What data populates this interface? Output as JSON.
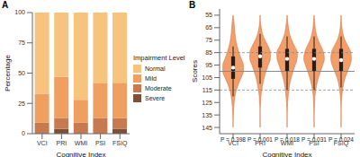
{
  "chart_data": [
    {
      "type": "bar",
      "title": "A",
      "stacked": true,
      "categories": [
        "VCI",
        "PRI",
        "WMI",
        "PSI",
        "FSIQ"
      ],
      "series": [
        {
          "name": "Normal",
          "color": "#F7C47F",
          "values": [
            67,
            53,
            72,
            58,
            58
          ]
        },
        {
          "name": "Mild",
          "color": "#EFA060",
          "values": [
            24,
            34,
            19,
            29,
            29
          ]
        },
        {
          "name": "Moderate",
          "color": "#C77A4F",
          "values": [
            9,
            9,
            9,
            13,
            9
          ]
        },
        {
          "name": "Severe",
          "color": "#7E5038",
          "values": [
            0,
            4,
            0,
            0,
            4
          ]
        }
      ],
      "legend_title": "Impairment Level",
      "legend": "right",
      "x_label": "Cognitive Index",
      "y_label": "Percentage",
      "ylim": [
        0,
        100
      ],
      "yticks": [
        0,
        25,
        50,
        75,
        100
      ]
    },
    {
      "type": "violin",
      "title": "B",
      "categories": [
        "VCI",
        "PRI",
        "WMI",
        "PSI",
        "FSIQ"
      ],
      "color": "#F0945A",
      "y_grid": [
        55,
        60,
        65,
        70,
        75,
        80,
        85,
        90,
        95,
        100,
        105,
        110,
        115,
        120,
        125,
        130,
        135,
        140,
        145
      ],
      "density": [
        [
          0,
          0.03,
          0.05,
          0.07,
          0.1,
          0.15,
          0.22,
          0.3,
          0.38,
          0.38,
          0.3,
          0.2,
          0.12,
          0.07,
          0.04,
          0.02,
          0.01,
          0,
          0
        ],
        [
          0,
          0.01,
          0.04,
          0.09,
          0.18,
          0.3,
          0.38,
          0.38,
          0.3,
          0.22,
          0.15,
          0.1,
          0.06,
          0.03,
          0.02,
          0,
          0,
          0,
          0
        ],
        [
          0,
          0.02,
          0.05,
          0.09,
          0.17,
          0.28,
          0.38,
          0.37,
          0.3,
          0.22,
          0.15,
          0.1,
          0.06,
          0.04,
          0.02,
          0.01,
          0,
          0,
          0
        ],
        [
          0,
          0.02,
          0.04,
          0.08,
          0.15,
          0.26,
          0.35,
          0.38,
          0.32,
          0.24,
          0.16,
          0.1,
          0.06,
          0.03,
          0.02,
          0.01,
          0,
          0,
          0
        ],
        [
          0,
          0.01,
          0.03,
          0.07,
          0.14,
          0.26,
          0.36,
          0.38,
          0.33,
          0.24,
          0.15,
          0.09,
          0.05,
          0.03,
          0.01,
          0,
          0,
          0,
          0
        ]
      ],
      "whisker_low": [
        80,
        70,
        72,
        72,
        72
      ],
      "q1": [
        88,
        80,
        82,
        82,
        82
      ],
      "median": [
        97,
        88,
        90,
        90,
        91
      ],
      "q3": [
        106,
        97,
        100,
        100,
        100
      ],
      "whisker_high": [
        120,
        110,
        115,
        115,
        113
      ],
      "annotations": [
        "P = 0.398",
        "P = 0.001",
        "P = 0.018",
        "P = 0.031",
        "P = 0.024"
      ],
      "reference_lines": [
        85,
        100,
        115
      ],
      "x_label": "Cognitive Index",
      "y_label": "Scores",
      "ylim": [
        50,
        150
      ],
      "yticks": [
        55,
        65,
        75,
        85,
        95,
        105,
        115,
        125,
        135,
        145
      ]
    }
  ]
}
